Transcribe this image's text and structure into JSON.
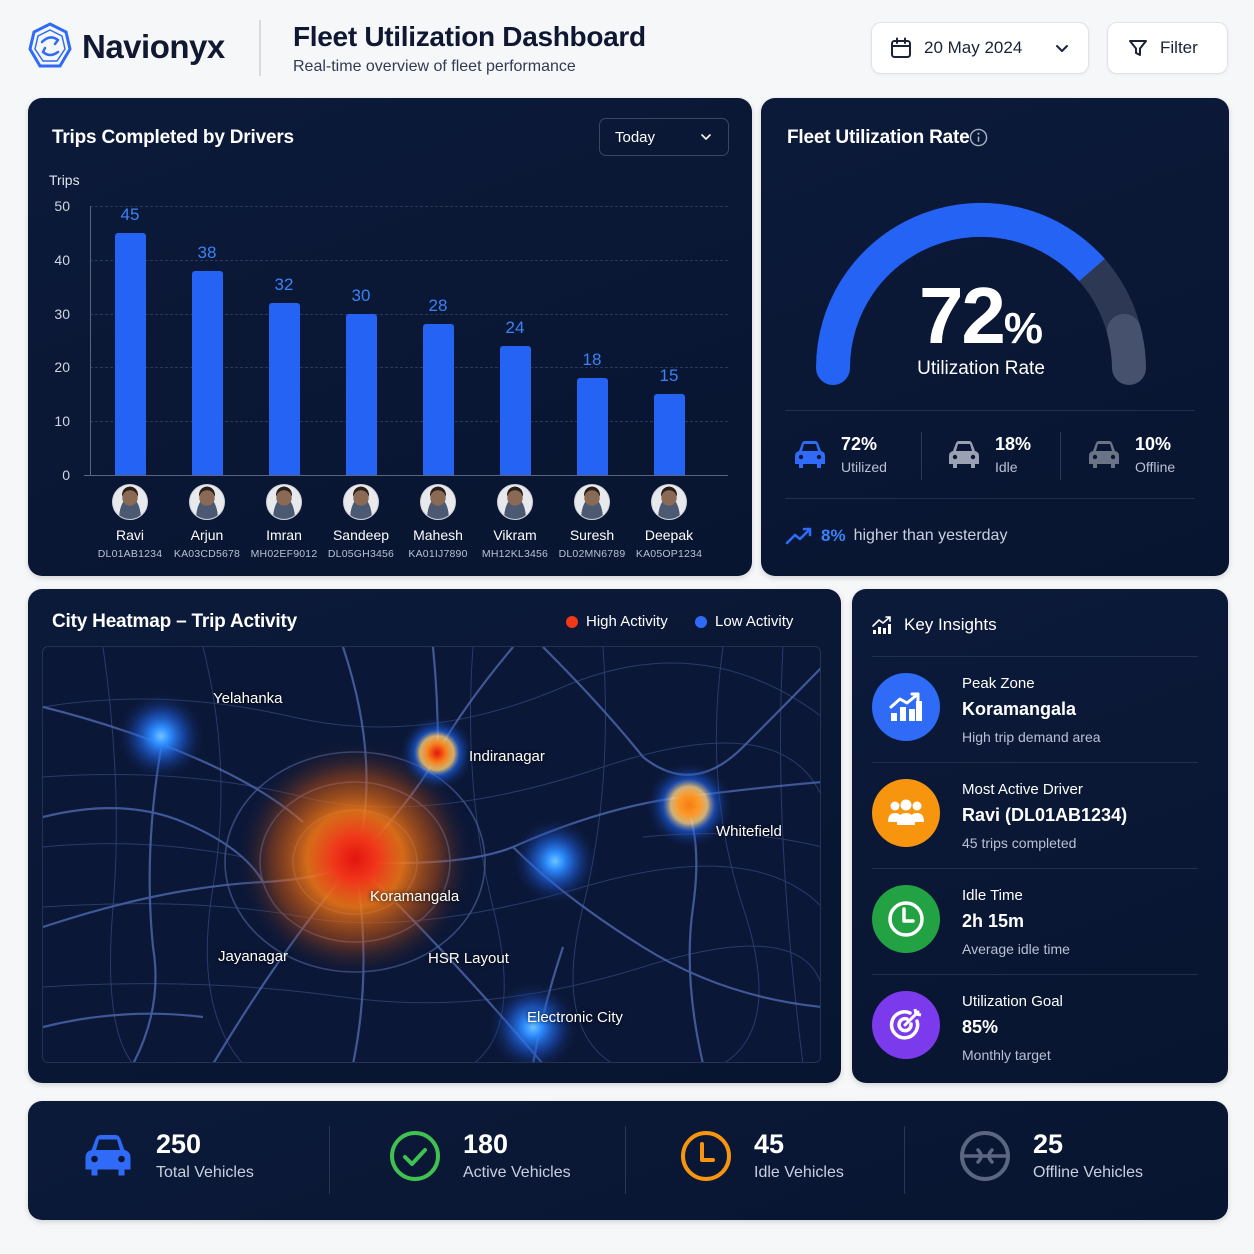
{
  "header": {
    "brand": "Navionyx",
    "title": "Fleet Utilization Dashboard",
    "subtitle": "Real-time overview of fleet performance",
    "date_value": "20 May 2024",
    "filter_label": "Filter"
  },
  "trips_panel": {
    "title": "Trips Completed by Drivers",
    "period_select": "Today",
    "y_axis_label": "Trips",
    "y_ticks": [
      "50",
      "40",
      "30",
      "20",
      "10",
      "0"
    ],
    "drivers": [
      {
        "name": "Ravi",
        "plate": "DL01AB1234",
        "trips": "45"
      },
      {
        "name": "Arjun",
        "plate": "KA03CD5678",
        "trips": "38"
      },
      {
        "name": "Imran",
        "plate": "MH02EF9012",
        "trips": "32"
      },
      {
        "name": "Sandeep",
        "plate": "DL05GH3456",
        "trips": "30"
      },
      {
        "name": "Mahesh",
        "plate": "KA01IJ7890",
        "trips": "28"
      },
      {
        "name": "Vikram",
        "plate": "MH12KL3456",
        "trips": "24"
      },
      {
        "name": "Suresh",
        "plate": "DL02MN6789",
        "trips": "18"
      },
      {
        "name": "Deepak",
        "plate": "KA05OP1234",
        "trips": "15"
      }
    ]
  },
  "chart_data": {
    "type": "bar",
    "title": "Trips Completed by Drivers",
    "categories": [
      "Ravi",
      "Arjun",
      "Imran",
      "Sandeep",
      "Mahesh",
      "Vikram",
      "Suresh",
      "Deepak"
    ],
    "values": [
      45,
      38,
      32,
      30,
      28,
      24,
      18,
      15
    ],
    "xlabel": "",
    "ylabel": "Trips",
    "ylim": [
      0,
      50
    ],
    "grid": true,
    "bar_color": "#2563f5"
  },
  "utilization": {
    "title": "Fleet Utilization Rate",
    "rate_number": "72",
    "rate_symbol": "%",
    "rate_label": "Utilization Rate",
    "stats": [
      {
        "value": "72%",
        "label": "Utilized",
        "color": "#2f6bf6"
      },
      {
        "value": "18%",
        "label": "Idle",
        "color": "#9aa1b4"
      },
      {
        "value": "10%",
        "label": "Offline",
        "color": "#6b7387"
      }
    ],
    "trend_value": "8%",
    "trend_text": "higher than yesterday"
  },
  "heatmap": {
    "title": "City Heatmap – Trip Activity",
    "legend": [
      {
        "label": "High Activity",
        "color": "#f03a17"
      },
      {
        "label": "Low Activity",
        "color": "#2f6bf6"
      }
    ],
    "areas": [
      "Yelahanka",
      "Indiranagar",
      "Whitefield",
      "Koramangala",
      "Jayanagar",
      "HSR Layout",
      "Electronic City"
    ]
  },
  "insights": {
    "title": "Key Insights",
    "items": [
      {
        "label": "Peak Zone",
        "value": "Koramangala",
        "sub": "High trip demand area",
        "color": "#2f6bf6"
      },
      {
        "label": "Most Active Driver",
        "value": "Ravi (DL01AB1234)",
        "sub": "45 trips completed",
        "color": "#f7950f"
      },
      {
        "label": "Idle Time",
        "value": "2h 15m",
        "sub": "Average idle time",
        "color": "#22a243"
      },
      {
        "label": "Utilization Goal",
        "value": "85%",
        "sub": "Monthly target",
        "color": "#7c3aed"
      }
    ]
  },
  "summary": [
    {
      "value": "250",
      "label": "Total Vehicles"
    },
    {
      "value": "180",
      "label": "Active Vehicles"
    },
    {
      "value": "45",
      "label": "Idle Vehicles"
    },
    {
      "value": "25",
      "label": "Offline Vehicles"
    }
  ]
}
